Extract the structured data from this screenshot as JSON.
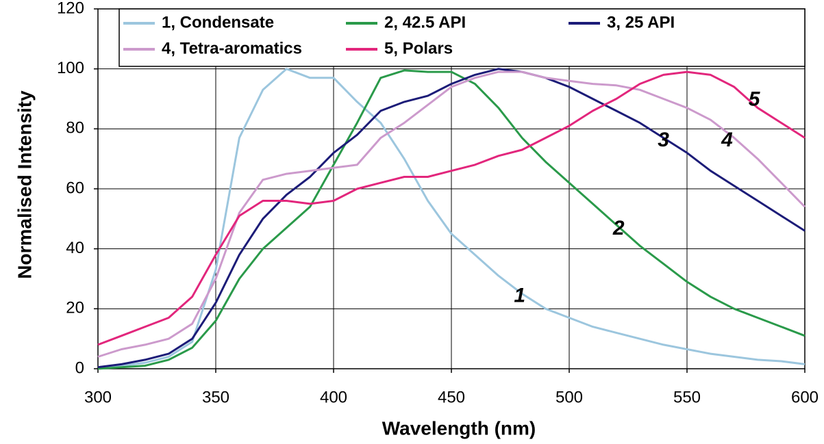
{
  "chart_data": {
    "type": "line",
    "x_label": "Wavelength (nm)",
    "y_label": "Normalised Intensity",
    "x": [
      300,
      310,
      320,
      330,
      340,
      350,
      360,
      370,
      380,
      390,
      400,
      410,
      420,
      430,
      440,
      450,
      460,
      470,
      480,
      490,
      500,
      510,
      520,
      530,
      540,
      550,
      560,
      570,
      580,
      590,
      600
    ],
    "series": [
      {
        "name": "1, Condensate",
        "color": "#9cc6de",
        "values": [
          0.5,
          1,
          2,
          4,
          9,
          33,
          77,
          93,
          100,
          97,
          97,
          89,
          82,
          70,
          56,
          45,
          38,
          31,
          25,
          20,
          17,
          14,
          12,
          10,
          8,
          6.5,
          5,
          4,
          3,
          2.5,
          1.5
        ]
      },
      {
        "name": "2, 42.5 API",
        "color": "#2a9a4a",
        "values": [
          0,
          0.5,
          1,
          3,
          7,
          16,
          30,
          40,
          47,
          54,
          68,
          82,
          97,
          99.5,
          99,
          99,
          95,
          87,
          77,
          69,
          62,
          55,
          48,
          41,
          35,
          29,
          24,
          20,
          17,
          14,
          11
        ]
      },
      {
        "name": "3, 25 API",
        "color": "#1c1c78",
        "values": [
          0.5,
          1.5,
          3,
          5,
          10,
          22,
          38,
          50,
          58,
          64,
          72,
          78,
          86,
          89,
          91,
          95,
          98,
          100,
          99,
          97,
          94,
          90,
          86,
          82,
          77,
          72,
          66,
          61,
          56,
          51,
          46
        ]
      },
      {
        "name": "4, Tetra-aromatics",
        "color": "#cc9acc",
        "values": [
          4,
          6.5,
          8,
          10,
          15,
          30,
          52,
          63,
          65,
          66,
          67,
          68,
          77,
          82,
          88,
          94,
          97,
          99,
          99,
          97,
          96,
          95,
          94.5,
          93,
          90,
          87,
          83,
          77,
          70,
          62,
          54
        ]
      },
      {
        "name": "5, Polars",
        "color": "#e2267c",
        "values": [
          8,
          11,
          14,
          17,
          24,
          38,
          51,
          56,
          56,
          55,
          56,
          60,
          62,
          64,
          64,
          66,
          68,
          71,
          73,
          77,
          81,
          86,
          90,
          95,
          98,
          99,
          98,
          94,
          87,
          82,
          77
        ]
      }
    ],
    "annotations": [
      {
        "text": "1",
        "x": 479,
        "y": 24
      },
      {
        "text": "2",
        "x": 521,
        "y": 46.5
      },
      {
        "text": "3",
        "x": 540,
        "y": 76
      },
      {
        "text": "4",
        "x": 567,
        "y": 76
      },
      {
        "text": "5",
        "x": 578.5,
        "y": 89.5
      }
    ],
    "xlim": [
      300,
      600
    ],
    "xticks": [
      300,
      350,
      400,
      450,
      500,
      550,
      600
    ],
    "ylim": [
      0,
      120
    ],
    "yticks": [
      0,
      20,
      40,
      60,
      80,
      100,
      120
    ],
    "grid": true,
    "legend": "top"
  }
}
